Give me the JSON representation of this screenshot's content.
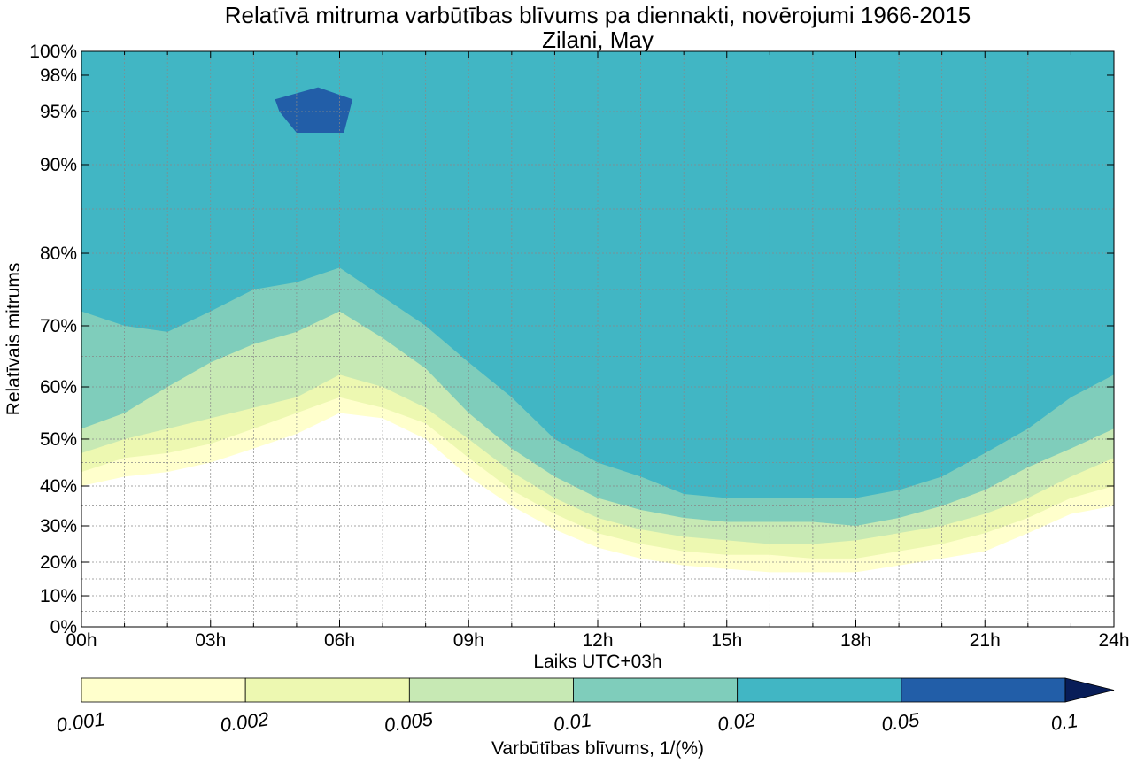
{
  "chart_data": {
    "type": "heatmap",
    "title": "Relatīvā mitruma varbūtības blīvums pa diennakti, novērojumi 1966-2015",
    "subtitle": "Zilani, May",
    "xlabel": "Laiks UTC+03h",
    "ylabel": "Relatīvais mitrums",
    "x_tick_labels": [
      "00h",
      "03h",
      "06h",
      "09h",
      "12h",
      "15h",
      "18h",
      "21h",
      "24h"
    ],
    "x_ticks": [
      0,
      3,
      6,
      9,
      12,
      15,
      18,
      21,
      24
    ],
    "xlim": [
      0,
      24
    ],
    "y_tick_labels": [
      "0%",
      "10%",
      "20%",
      "30%",
      "40%",
      "50%",
      "60%",
      "70%",
      "80%",
      "90%",
      "95%",
      "98%",
      "100%"
    ],
    "y_ticks": [
      0,
      10,
      20,
      30,
      40,
      50,
      60,
      70,
      80,
      90,
      95,
      98,
      100
    ],
    "ylim": [
      0,
      100
    ],
    "grid": true,
    "colorbar": {
      "label": "Varbūtības blīvums, 1/(%)",
      "levels": [
        0.001,
        0.002,
        0.005,
        0.01,
        0.02,
        0.05,
        0.1
      ],
      "tick_labels": [
        "0.001",
        "0.002",
        "0.005",
        "0.01",
        "0.02",
        "0.05",
        "0.1"
      ],
      "colors": [
        "#ffffcc",
        "#edf8b1",
        "#c7e9b4",
        "#7fcdbb",
        "#41b6c4",
        "#225ea8",
        "#081d58"
      ],
      "extend": "max",
      "placement": "bottom"
    },
    "regions": [
      {
        "level": 0.001,
        "x": [
          0,
          1,
          2,
          3,
          4,
          5,
          6,
          7,
          8,
          9,
          10,
          11,
          12,
          13,
          14,
          15,
          16,
          17,
          18,
          19,
          20,
          21,
          22,
          23,
          24
        ],
        "y": [
          40,
          42,
          43,
          45,
          48,
          51,
          55,
          54,
          50,
          42,
          35,
          29,
          24,
          21,
          19,
          18,
          17,
          17,
          17,
          19,
          21,
          23,
          28,
          33,
          35
        ]
      },
      {
        "level": 0.002,
        "x": [
          0,
          1,
          2,
          3,
          4,
          5,
          6,
          7,
          8,
          9,
          10,
          11,
          12,
          13,
          14,
          15,
          16,
          17,
          18,
          19,
          20,
          21,
          22,
          23,
          24
        ],
        "y": [
          43,
          46,
          47,
          49,
          52,
          55,
          58,
          56,
          53,
          46,
          39,
          33,
          28,
          25,
          23,
          22,
          22,
          21,
          21,
          23,
          25,
          28,
          32,
          37,
          40
        ]
      },
      {
        "level": 0.005,
        "x": [
          0,
          1,
          2,
          3,
          4,
          5,
          6,
          7,
          8,
          9,
          10,
          11,
          12,
          13,
          14,
          15,
          16,
          17,
          18,
          19,
          20,
          21,
          22,
          23,
          24
        ],
        "y": [
          47,
          50,
          52,
          54,
          56,
          58,
          62,
          60,
          56,
          50,
          43,
          37,
          32,
          29,
          27,
          26,
          25,
          25,
          26,
          28,
          30,
          33,
          37,
          42,
          46
        ]
      },
      {
        "level": 0.01,
        "x": [
          0,
          1,
          2,
          3,
          4,
          5,
          6,
          7,
          8,
          9,
          10,
          11,
          12,
          13,
          14,
          15,
          16,
          17,
          18,
          19,
          20,
          21,
          22,
          23,
          24
        ],
        "y": [
          52,
          55,
          60,
          64,
          67,
          69,
          72,
          68,
          63,
          55,
          48,
          42,
          37,
          34,
          32,
          31,
          31,
          31,
          30,
          32,
          35,
          39,
          44,
          48,
          52
        ]
      },
      {
        "level": 0.02,
        "x": [
          0,
          1,
          2,
          3,
          4,
          5,
          6,
          7,
          8,
          9,
          10,
          11,
          12,
          13,
          14,
          15,
          16,
          17,
          18,
          19,
          20,
          21,
          22,
          23,
          24
        ],
        "y": [
          72,
          70,
          69,
          72,
          75,
          76,
          78,
          74,
          70,
          64,
          58,
          50,
          45,
          42,
          38,
          37,
          37,
          37,
          37,
          39,
          42,
          47,
          52,
          58,
          62
        ]
      },
      {
        "level": 0.05,
        "x": [
          4.5,
          5.5,
          6.3,
          6.1,
          5.0,
          4.6
        ],
        "y": [
          96,
          97,
          96,
          93,
          93,
          95
        ]
      }
    ]
  }
}
